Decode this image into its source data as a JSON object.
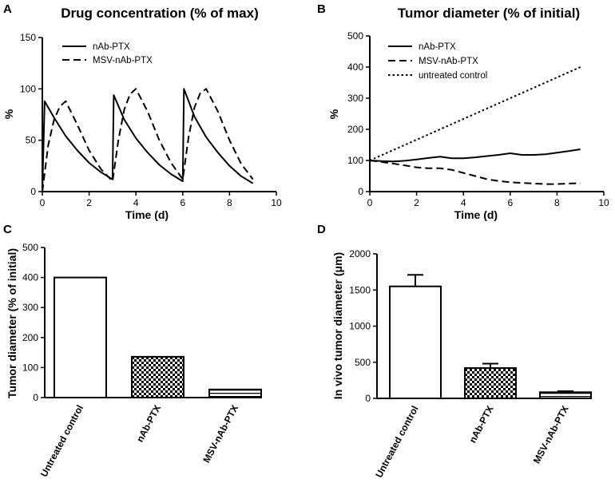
{
  "panel_labels": [
    "A",
    "B",
    "C",
    "D"
  ],
  "chart_data": [
    {
      "id": "A",
      "type": "line",
      "title": "Drug concentration (% of max)",
      "xlabel": "Time  (d)",
      "ylabel": "%",
      "xlim": [
        0,
        10
      ],
      "ylim": [
        0,
        150
      ],
      "xticks": [
        0,
        2,
        4,
        6,
        8,
        10
      ],
      "yticks": [
        0,
        50,
        100,
        150
      ],
      "legend": "top-left",
      "series": [
        {
          "name": "nAb-PTX",
          "style": "solid",
          "x": [
            0,
            0.1,
            0.5,
            1,
            1.5,
            2,
            2.5,
            3,
            3.05,
            3.2,
            3.5,
            4,
            4.5,
            5,
            5.5,
            6,
            6.05,
            6.2,
            6.5,
            7,
            7.5,
            8,
            8.5,
            9
          ],
          "y": [
            0,
            88,
            72,
            54,
            40,
            28,
            19,
            12,
            94,
            86,
            70,
            52,
            38,
            26,
            17,
            10,
            100,
            91,
            73,
            53,
            38,
            25,
            15,
            8
          ]
        },
        {
          "name": "MSV-nAb-PTX",
          "style": "dashed",
          "x": [
            0,
            0.25,
            0.5,
            0.75,
            1,
            1.5,
            2,
            2.5,
            3,
            3.25,
            3.5,
            3.75,
            4,
            4.5,
            5,
            5.5,
            6,
            6.25,
            6.5,
            6.75,
            7,
            7.5,
            8,
            8.5,
            9
          ],
          "y": [
            0,
            45,
            70,
            83,
            88,
            65,
            40,
            22,
            10,
            50,
            80,
            95,
            100,
            78,
            50,
            28,
            12,
            53,
            82,
            96,
            100,
            78,
            50,
            27,
            12
          ]
        }
      ]
    },
    {
      "id": "B",
      "type": "line",
      "title": "Tumor diameter (% of initial)",
      "xlabel": "Time  (d)",
      "ylabel": "%",
      "xlim": [
        0,
        10
      ],
      "ylim": [
        0,
        500
      ],
      "xticks": [
        0,
        2,
        4,
        6,
        8,
        10
      ],
      "yticks": [
        0,
        100,
        200,
        300,
        400,
        500
      ],
      "legend": "top-left",
      "series": [
        {
          "name": "nAb-PTX",
          "style": "solid",
          "x": [
            0,
            0.5,
            1,
            1.5,
            2,
            2.5,
            3,
            3.5,
            4,
            4.5,
            5,
            5.5,
            6,
            6.5,
            7,
            7.5,
            8,
            8.5,
            9
          ],
          "y": [
            100,
            98,
            97,
            99,
            103,
            108,
            112,
            107,
            107,
            110,
            114,
            118,
            123,
            118,
            118,
            120,
            125,
            130,
            136
          ]
        },
        {
          "name": "MSV-nAb-PTX",
          "style": "dashed",
          "x": [
            0,
            0.5,
            1,
            1.5,
            2,
            2.5,
            3,
            3.5,
            4,
            4.5,
            5,
            5.5,
            6,
            6.5,
            7,
            7.5,
            8,
            8.5,
            9
          ],
          "y": [
            100,
            95,
            90,
            84,
            78,
            75,
            75,
            70,
            60,
            50,
            40,
            34,
            30,
            28,
            26,
            24,
            24,
            26,
            27
          ]
        },
        {
          "name": "untreated control",
          "style": "dotted",
          "x": [
            0,
            9
          ],
          "y": [
            100,
            400
          ]
        }
      ]
    },
    {
      "id": "C",
      "type": "bar",
      "title": "",
      "xlabel": "",
      "ylabel": "Tumor diameter  (% of initial)",
      "ylim": [
        0,
        500
      ],
      "yticks": [
        0,
        100,
        200,
        300,
        400,
        500
      ],
      "categories": [
        "Untreated control",
        "nAb-PTX",
        "MSV-nAb-PTX"
      ],
      "values": [
        400,
        136,
        27
      ],
      "fills": [
        "white",
        "checker",
        "stripes"
      ]
    },
    {
      "id": "D",
      "type": "bar",
      "title": "",
      "xlabel": "",
      "ylabel": "In vivo tumor diameter (μm)",
      "ylim": [
        0,
        2000
      ],
      "yticks": [
        0,
        500,
        1000,
        1500,
        2000
      ],
      "categories": [
        "Untreated control",
        "nAb-PTX",
        "MSV-nAb-PTX"
      ],
      "values": [
        1550,
        420,
        85
      ],
      "errors": [
        160,
        60,
        15
      ],
      "fills": [
        "white",
        "checker",
        "stripes"
      ]
    }
  ]
}
